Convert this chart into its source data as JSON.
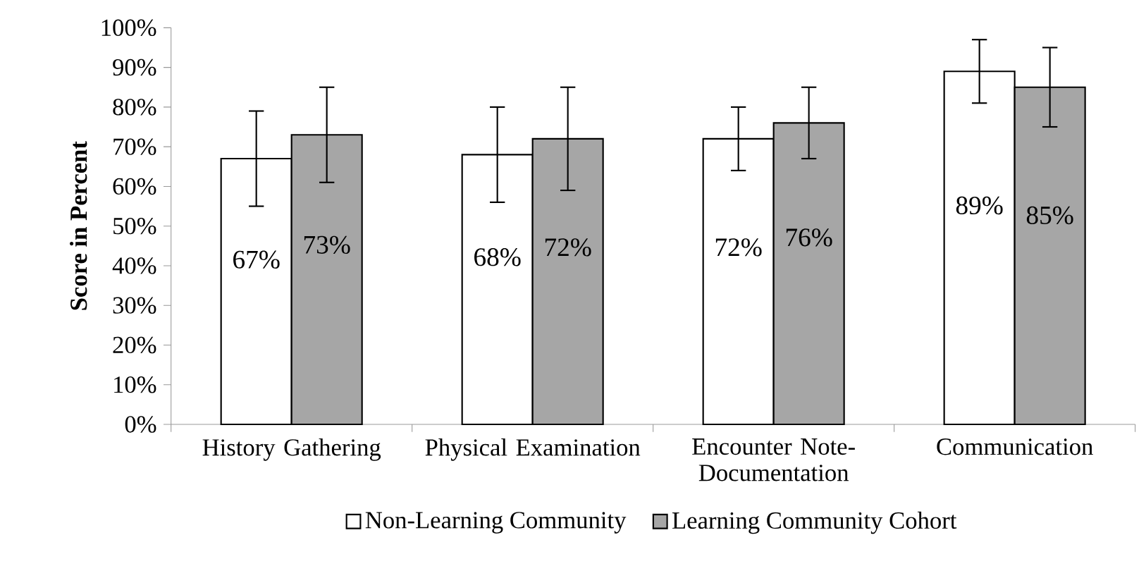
{
  "chart_data": {
    "type": "bar",
    "ylabel": "Score in Percent",
    "categories": [
      "History Gathering",
      "Physical Examination",
      "Encounter Note-Documentation",
      "Communication"
    ],
    "series": [
      {
        "name": "Non-Learning Community",
        "color": "#ffffff",
        "values": [
          67,
          68,
          72,
          89
        ],
        "errors": [
          12,
          12,
          8,
          8
        ],
        "value_labels": [
          "67%",
          "68%",
          "72%",
          "89%"
        ]
      },
      {
        "name": "Learning Community Cohort",
        "color": "#a6a6a6",
        "values": [
          73,
          72,
          76,
          85
        ],
        "errors": [
          12,
          13,
          9,
          10
        ],
        "value_labels": [
          "73%",
          "72%",
          "76%",
          "85%"
        ]
      }
    ],
    "ylim": [
      0,
      100
    ],
    "yticks": [
      {
        "value": 0,
        "label": "0%"
      },
      {
        "value": 10,
        "label": "10%"
      },
      {
        "value": 20,
        "label": "20%"
      },
      {
        "value": 30,
        "label": "30%"
      },
      {
        "value": 40,
        "label": "40%"
      },
      {
        "value": 50,
        "label": "50%"
      },
      {
        "value": 60,
        "label": "60%"
      },
      {
        "value": 70,
        "label": "70%"
      },
      {
        "value": 80,
        "label": "80%"
      },
      {
        "value": 90,
        "label": "90%"
      },
      {
        "value": 100,
        "label": "100%"
      }
    ],
    "grid": false,
    "legend": "bottom"
  }
}
